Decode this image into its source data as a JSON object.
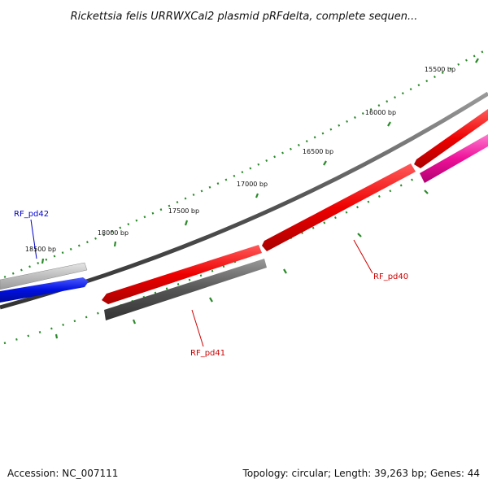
{
  "title": "Rickettsia felis URRWXCal2 plasmid pRFdelta, complete sequen...",
  "ticks": [
    {
      "label": "15500 bp"
    },
    {
      "label": "16000 bp"
    },
    {
      "label": "16500 bp"
    },
    {
      "label": "17000 bp"
    },
    {
      "label": "17500 bp"
    },
    {
      "label": "18000 bp"
    },
    {
      "label": "18500 bp"
    }
  ],
  "genes": [
    {
      "name": "RF_pd42",
      "color": "#0000cc"
    },
    {
      "name": "RF_pd41",
      "color": "#cc0000"
    },
    {
      "name": "RF_pd40",
      "color": "#cc0000"
    }
  ],
  "footer": {
    "accession": "Accession: NC_007111",
    "summary": "Topology: circular; Length: 39,263 bp; Genes: 44"
  }
}
